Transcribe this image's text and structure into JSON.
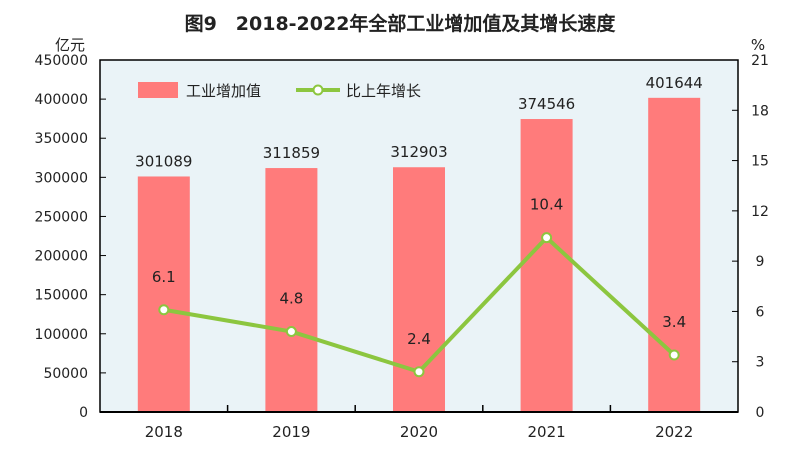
{
  "chart_data": {
    "type": "bar+line",
    "title": "图9　2018-2022年全部工业增加值及其增长速度",
    "categories": [
      "2018",
      "2019",
      "2020",
      "2021",
      "2022"
    ],
    "left_axis": {
      "unit": "亿元",
      "range": [
        0,
        450000
      ],
      "ticks": [
        0,
        50000,
        100000,
        150000,
        200000,
        250000,
        300000,
        350000,
        400000,
        450000
      ]
    },
    "right_axis": {
      "unit": "%",
      "range": [
        0,
        21
      ],
      "ticks": [
        0,
        3,
        6,
        9,
        12,
        15,
        18,
        21
      ]
    },
    "series": [
      {
        "name": "工业增加值",
        "type": "bar",
        "axis": "left",
        "color": "#ff7b7b",
        "values": [
          301089,
          311859,
          312903,
          374546,
          401644
        ]
      },
      {
        "name": "比上年增长",
        "type": "line",
        "axis": "right",
        "color": "#8cc63f",
        "values": [
          6.1,
          4.8,
          2.4,
          10.4,
          3.4
        ]
      }
    ],
    "legend": "top-left",
    "plot_background": "#eaf3f7"
  }
}
